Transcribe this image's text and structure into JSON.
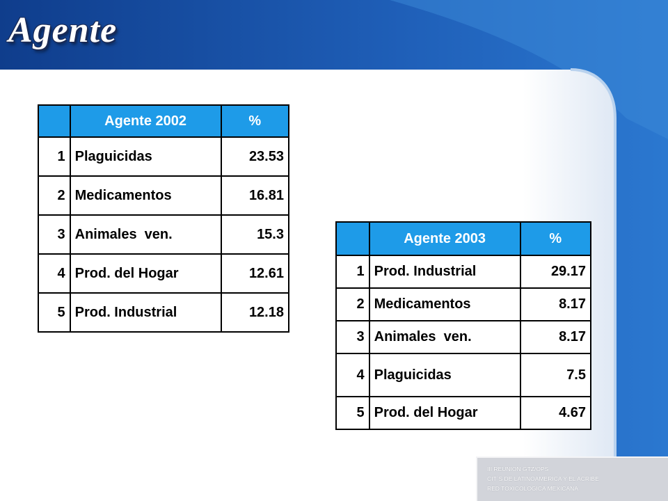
{
  "slide": {
    "title": "Agente"
  },
  "table_2002": {
    "header": {
      "rank": "",
      "agent": "Agente 2002",
      "pct": "%"
    },
    "rows": [
      {
        "rank": "1",
        "agent": "Plaguicidas",
        "pct": "23.53"
      },
      {
        "rank": "2",
        "agent": "Medicamentos",
        "pct": "16.81"
      },
      {
        "rank": "3",
        "agent": "Animales  ven.",
        "pct": "15.3"
      },
      {
        "rank": "4",
        "agent": "Prod. del Hogar",
        "pct": "12.61"
      },
      {
        "rank": "5",
        "agent": "Prod. Industrial",
        "pct": "12.18"
      }
    ]
  },
  "table_2003": {
    "header": {
      "rank": "",
      "agent": "Agente 2003",
      "pct": "%"
    },
    "rows": [
      {
        "rank": "1",
        "agent": "Prod. Industrial",
        "pct": "29.17"
      },
      {
        "rank": "2",
        "agent": "Medicamentos",
        "pct": "8.17"
      },
      {
        "rank": "3",
        "agent": "Animales  ven.",
        "pct": "8.17"
      },
      {
        "rank": "4",
        "agent": "Plaguicidas",
        "pct": "7.5"
      },
      {
        "rank": "5",
        "agent": "Prod. del Hogar",
        "pct": "4.67"
      }
    ]
  },
  "footer": {
    "line1": "III REUNION GTZ/OPS",
    "line2": "CIT´S DE LATINOAMERICA Y EL ACRIBE",
    "line3": "RED TOXICOLOGICA MEXICANA"
  },
  "colors": {
    "background_blue": "#1a4fa0",
    "header_cell_blue": "#1e9be8",
    "panel_white": "#ffffff",
    "footer_gray": "#d2d4da"
  }
}
